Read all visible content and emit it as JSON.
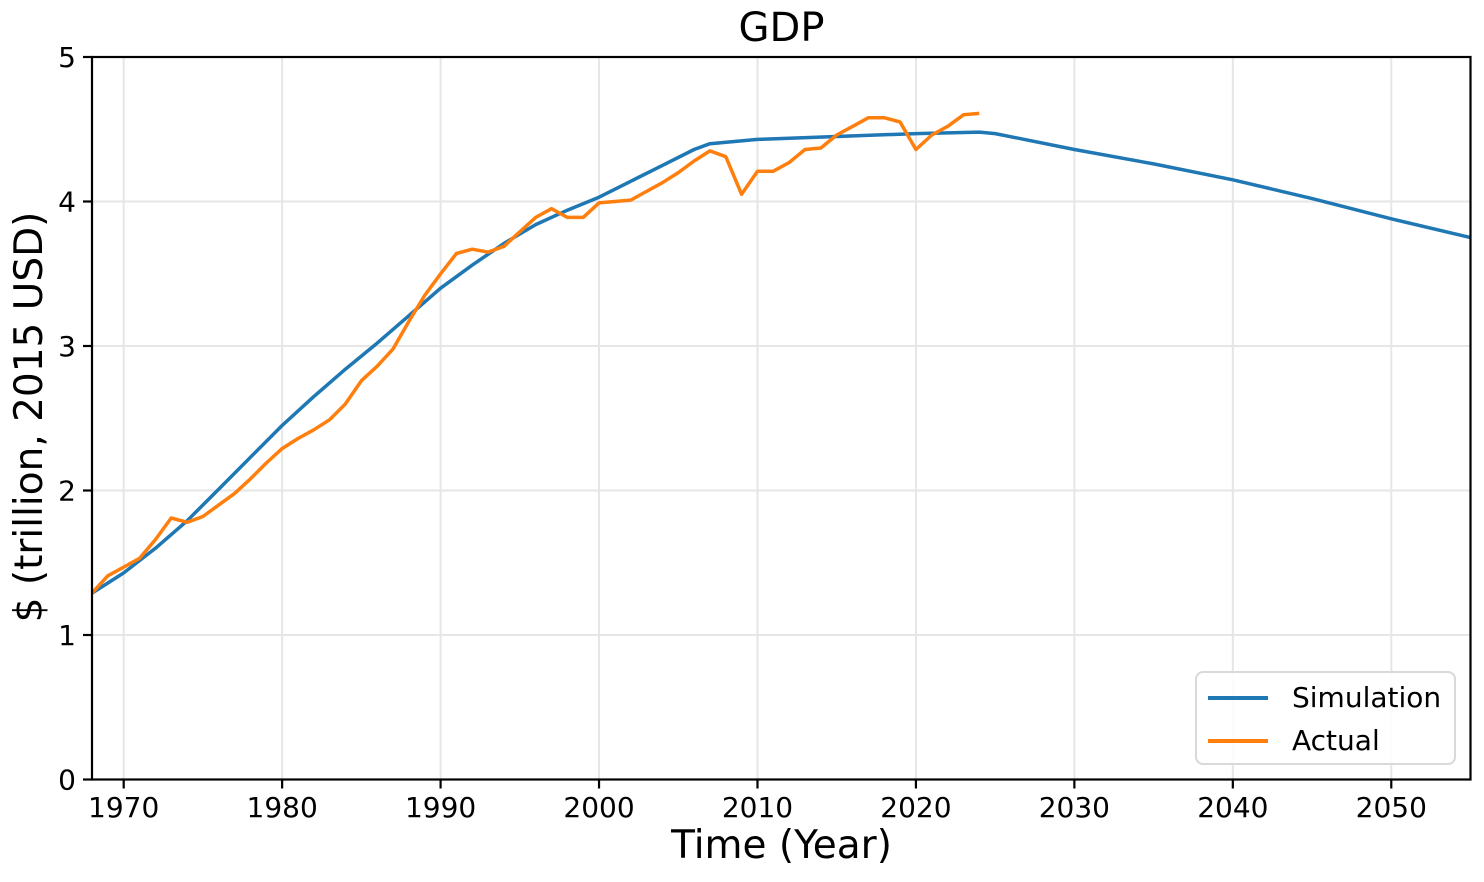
{
  "chart_data": {
    "type": "line",
    "title": "GDP",
    "xlabel": "Time (Year)",
    "ylabel": "$ (trillion, 2015 USD)",
    "xlim": [
      1968,
      2055
    ],
    "ylim": [
      0,
      5
    ],
    "x_ticks": [
      1970,
      1980,
      1990,
      2000,
      2010,
      2020,
      2030,
      2040,
      2050
    ],
    "y_ticks": [
      0,
      1,
      2,
      3,
      4,
      5
    ],
    "grid": true,
    "grid_color": "#e6e6e6",
    "legend_position": "lower right",
    "series": [
      {
        "name": "Simulation",
        "color": "#1f77b4",
        "points": [
          [
            1968,
            1.29
          ],
          [
            1970,
            1.43
          ],
          [
            1972,
            1.6
          ],
          [
            1974,
            1.79
          ],
          [
            1976,
            2.01
          ],
          [
            1978,
            2.23
          ],
          [
            1980,
            2.45
          ],
          [
            1982,
            2.65
          ],
          [
            1984,
            2.84
          ],
          [
            1986,
            3.02
          ],
          [
            1988,
            3.21
          ],
          [
            1990,
            3.4
          ],
          [
            1992,
            3.56
          ],
          [
            1994,
            3.71
          ],
          [
            1996,
            3.84
          ],
          [
            1998,
            3.94
          ],
          [
            2000,
            4.03
          ],
          [
            2002,
            4.14
          ],
          [
            2004,
            4.25
          ],
          [
            2006,
            4.36
          ],
          [
            2007,
            4.4
          ],
          [
            2010,
            4.43
          ],
          [
            2015,
            4.45
          ],
          [
            2020,
            4.47
          ],
          [
            2024,
            4.48
          ],
          [
            2025,
            4.47
          ],
          [
            2030,
            4.36
          ],
          [
            2035,
            4.26
          ],
          [
            2040,
            4.15
          ],
          [
            2045,
            4.02
          ],
          [
            2050,
            3.88
          ],
          [
            2055,
            3.75
          ]
        ]
      },
      {
        "name": "Actual",
        "color": "#ff7f0e",
        "points": [
          [
            1968,
            1.29
          ],
          [
            1969,
            1.41
          ],
          [
            1970,
            1.47
          ],
          [
            1971,
            1.53
          ],
          [
            1972,
            1.66
          ],
          [
            1973,
            1.81
          ],
          [
            1974,
            1.78
          ],
          [
            1975,
            1.82
          ],
          [
            1976,
            1.9
          ],
          [
            1977,
            1.98
          ],
          [
            1978,
            2.08
          ],
          [
            1979,
            2.19
          ],
          [
            1980,
            2.29
          ],
          [
            1981,
            2.36
          ],
          [
            1982,
            2.42
          ],
          [
            1983,
            2.49
          ],
          [
            1984,
            2.6
          ],
          [
            1985,
            2.76
          ],
          [
            1986,
            2.86
          ],
          [
            1987,
            2.98
          ],
          [
            1988,
            3.17
          ],
          [
            1989,
            3.35
          ],
          [
            1990,
            3.5
          ],
          [
            1991,
            3.64
          ],
          [
            1992,
            3.67
          ],
          [
            1993,
            3.65
          ],
          [
            1994,
            3.69
          ],
          [
            1995,
            3.79
          ],
          [
            1996,
            3.89
          ],
          [
            1997,
            3.95
          ],
          [
            1998,
            3.89
          ],
          [
            1999,
            3.89
          ],
          [
            2000,
            3.99
          ],
          [
            2001,
            4.0
          ],
          [
            2002,
            4.01
          ],
          [
            2003,
            4.07
          ],
          [
            2004,
            4.13
          ],
          [
            2005,
            4.2
          ],
          [
            2006,
            4.28
          ],
          [
            2007,
            4.35
          ],
          [
            2008,
            4.31
          ],
          [
            2009,
            4.05
          ],
          [
            2010,
            4.21
          ],
          [
            2011,
            4.21
          ],
          [
            2012,
            4.27
          ],
          [
            2013,
            4.36
          ],
          [
            2014,
            4.37
          ],
          [
            2015,
            4.46
          ],
          [
            2016,
            4.52
          ],
          [
            2017,
            4.58
          ],
          [
            2018,
            4.58
          ],
          [
            2019,
            4.55
          ],
          [
            2020,
            4.36
          ],
          [
            2021,
            4.46
          ],
          [
            2022,
            4.52
          ],
          [
            2023,
            4.6
          ],
          [
            2024,
            4.61
          ]
        ]
      }
    ]
  }
}
